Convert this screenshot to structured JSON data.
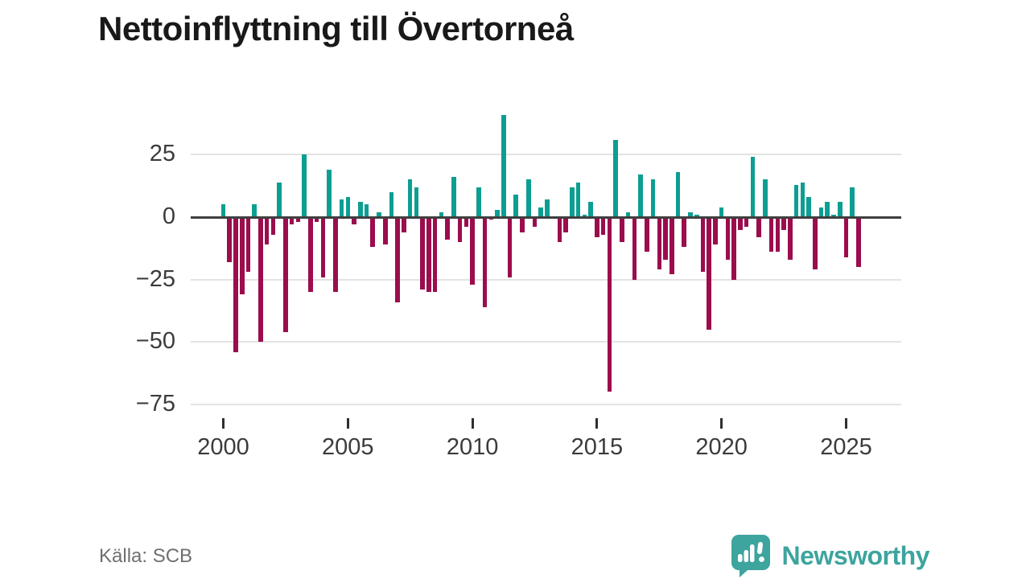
{
  "title": "Nettoinflyttning till Övertorneå",
  "source": "Källa: SCB",
  "branding": {
    "logo_text": "Newsworthy",
    "logo_icon": "newsworthy-speech-bubble-chart-icon"
  },
  "colors": {
    "positive_bar": "#0d9e92",
    "negative_bar": "#9b0d4d",
    "grid": "#e3e3e3",
    "zero_line": "#3f3f3f",
    "axis_text": "#3b3b3b",
    "title_text": "#191919",
    "source_text": "#6f6f6f",
    "brand_teal": "#3da49e"
  },
  "chart_data": {
    "type": "bar",
    "title": "Nettoinflyttning till Övertorneå",
    "frequency": "quarterly",
    "start_period": "2000-Q1",
    "end_period": "2025-Q3",
    "values": [
      5,
      -18,
      -54,
      -31,
      -22,
      5,
      -50,
      -11,
      -7,
      14,
      -46,
      -3,
      -2,
      25,
      -30,
      -2,
      -24,
      19,
      -30,
      7,
      8,
      -3,
      6,
      5,
      -12,
      2,
      -11,
      10,
      -34,
      -6,
      15,
      12,
      -29,
      -30,
      -30,
      2,
      -9,
      16,
      -10,
      -4,
      -27,
      12,
      -36,
      -1,
      3,
      41,
      -24,
      9,
      -6,
      15,
      -4,
      4,
      7,
      0,
      -10,
      -6,
      12,
      14,
      1,
      6,
      -8,
      -7,
      -70,
      31,
      -10,
      2,
      -25,
      17,
      -14,
      15,
      -21,
      -17,
      -23,
      18,
      -12,
      2,
      1,
      -22,
      -45,
      -11,
      4,
      -17,
      -25,
      -5,
      -4,
      24,
      -8,
      15,
      -14,
      -14,
      -5,
      -17,
      13,
      14,
      8,
      -21,
      4,
      6,
      1,
      6,
      -16,
      12,
      -20
    ],
    "ylim": [
      -75,
      45
    ],
    "ytick_values": [
      25,
      0,
      -25,
      -50,
      -75
    ],
    "ytick_labels": [
      "25",
      "0",
      "−25",
      "−50",
      "−75"
    ],
    "xtick_years": [
      2000,
      2005,
      2010,
      2015,
      2020,
      2025
    ],
    "xtick_labels": [
      "2000",
      "2005",
      "2010",
      "2015",
      "2020",
      "2025"
    ],
    "grid": "horizontal-only",
    "legend": "none",
    "positive_color": "#0d9e92",
    "negative_color": "#9b0d4d"
  }
}
